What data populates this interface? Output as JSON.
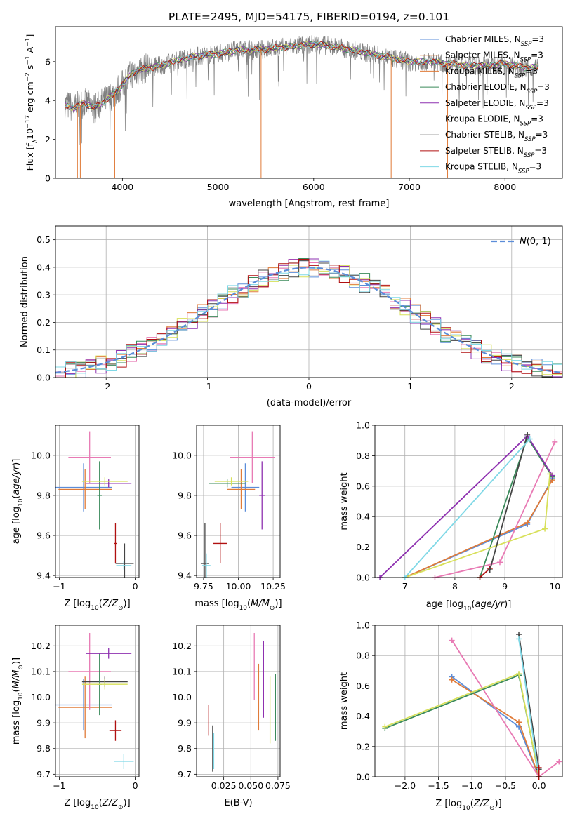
{
  "figure_title": "PLATE=2495, MJD=54175, FIBERID=0194, z=0.101",
  "colors": {
    "Chabrier MILES": "#5b8dd9",
    "Salpeter MILES": "#e07b39",
    "Kroupa MILES": "#e07b39",
    "Chabrier ELODIE": "#3a8a5a",
    "Salpeter ELODIE": "#8e30b0",
    "Kroupa ELODIE": "#d8e05a",
    "Chabrier STELIB": "#444444",
    "Salpeter STELIB": "#b01010",
    "Kroupa STELIB": "#7fd8e6",
    "pink": "#e87ab4",
    "data": "#808080",
    "normal": "#5b8dd9",
    "grid": "#b0b0b0"
  },
  "chart_data": [
    {
      "id": "spectrum",
      "type": "line",
      "title": "PLATE=2495, MJD=54175, FIBERID=0194, z=0.101",
      "xlabel": "wavelength [Angstrom, rest frame]",
      "ylabel": "Flux [f_λ 10^-17 erg cm^-2 s^-1 A^-1]",
      "xlim": [
        3300,
        8600
      ],
      "ylim": [
        0,
        7.8
      ],
      "xticks": [
        4000,
        5000,
        6000,
        7000,
        8000
      ],
      "yticks": [
        0,
        2,
        4,
        6
      ],
      "grid": false,
      "legend_position": "right",
      "legend": [
        {
          "name": "Chabrier MILES",
          "sub": "SSP",
          "n": "=3",
          "color": "#5b8dd9"
        },
        {
          "name": "Salpeter MILES",
          "sub": "SSP",
          "n": "=3",
          "color": "#e07b39"
        },
        {
          "name": "Kroupa MILES",
          "sub": "SSP",
          "n": "=3",
          "color": "#e07b39"
        },
        {
          "name": "Chabrier ELODIE",
          "sub": "SSP",
          "n": "=3",
          "color": "#3a8a5a"
        },
        {
          "name": "Salpeter ELODIE",
          "sub": "SSP",
          "n": "=3",
          "color": "#8e30b0"
        },
        {
          "name": "Kroupa ELODIE",
          "sub": "SSP",
          "n": "=3",
          "color": "#d8e05a"
        },
        {
          "name": "Chabrier STELIB",
          "sub": "SSP",
          "n": "=3",
          "color": "#444444"
        },
        {
          "name": "Salpeter STELIB",
          "sub": "SSP",
          "n": "=3",
          "color": "#b01010"
        },
        {
          "name": "Kroupa STELIB",
          "sub": "SSP",
          "n": "=3",
          "color": "#7fd8e6"
        }
      ],
      "continuum_x": [
        3400,
        3500,
        3600,
        3700,
        3800,
        3900,
        4000,
        4100,
        4200,
        4400,
        4600,
        4800,
        5000,
        5200,
        5400,
        5600,
        5800,
        6000,
        6200,
        6400,
        6600,
        6800,
        7000,
        7200,
        7400,
        7600,
        7800,
        8000,
        8200,
        8300
      ],
      "continuum_y": [
        3.8,
        3.6,
        3.9,
        3.6,
        3.9,
        4.3,
        4.8,
        5.4,
        5.6,
        5.8,
        6.1,
        6.3,
        6.4,
        6.6,
        6.6,
        6.7,
        6.8,
        6.9,
        6.8,
        6.6,
        6.4,
        6.2,
        6.0,
        6.0,
        5.9,
        5.8,
        5.8,
        5.9,
        5.7,
        5.7
      ],
      "spikes": [
        {
          "x": 3530,
          "y": 0
        },
        {
          "x": 3560,
          "y": 0
        },
        {
          "x": 3920,
          "y": 0
        },
        {
          "x": 5450,
          "y": 0
        },
        {
          "x": 6810,
          "y": 0
        },
        {
          "x": 7400,
          "y": 0
        }
      ]
    },
    {
      "id": "residuals",
      "type": "line",
      "xlabel": "(data-model)/error",
      "ylabel": "Normed distribution",
      "xlim": [
        -2.5,
        2.5
      ],
      "ylim": [
        0,
        0.55
      ],
      "xticks": [
        -2,
        -1,
        0,
        1,
        2
      ],
      "yticks": [
        0.0,
        0.1,
        0.2,
        0.3,
        0.4,
        0.5
      ],
      "grid": true,
      "legend_position": "top-right",
      "legend": [
        {
          "name": "N(0,1)",
          "color": "#5b8dd9",
          "style": "dashed"
        }
      ],
      "bin_width": 0.1,
      "histogram_approx_x": [
        -2.45,
        -2.05,
        -1.65,
        -1.25,
        -0.85,
        -0.45,
        -0.05,
        0.05,
        0.45,
        0.85,
        1.25,
        1.65,
        2.05,
        2.45
      ],
      "histogram_approx_y": [
        0.02,
        0.05,
        0.11,
        0.18,
        0.27,
        0.36,
        0.45,
        0.48,
        0.4,
        0.26,
        0.17,
        0.1,
        0.05,
        0.03
      ]
    },
    {
      "id": "age_vs_Z",
      "type": "scatter",
      "xlabel": "Z [log10(Z/Z_sun)]",
      "ylabel": "age  [log10(age/yr)]",
      "xlim": [
        -1.05,
        0.05
      ],
      "ylim": [
        9.39,
        10.15
      ],
      "xticks": [
        -1,
        0
      ],
      "xtick_labels": [
        "−1",
        "0"
      ],
      "yticks": [
        9.4,
        9.6,
        9.8,
        10.0
      ],
      "ytick_labels": [
        "9.4",
        "9.6",
        "9.8",
        "10.0"
      ],
      "grid": true,
      "points": [
        {
          "x": -0.68,
          "y": 9.84,
          "xerr": 0.37,
          "yerr": 0.12,
          "color": "#5b8dd9"
        },
        {
          "x": -0.66,
          "y": 9.83,
          "xerr": 0.35,
          "yerr": 0.1,
          "color": "#e07b39"
        },
        {
          "x": -0.6,
          "y": 9.99,
          "xerr": 0.28,
          "yerr": 0.13,
          "color": "#e87ab4"
        },
        {
          "x": -0.47,
          "y": 9.8,
          "xerr": 0.03,
          "yerr": 0.17,
          "color": "#3a8a5a"
        },
        {
          "x": -0.35,
          "y": 9.86,
          "xerr": 0.3,
          "yerr": 0.02,
          "color": "#8e30b0"
        },
        {
          "x": -0.4,
          "y": 9.87,
          "xerr": 0.3,
          "yerr": 0.02,
          "color": "#d8e05a"
        },
        {
          "x": -0.26,
          "y": 9.56,
          "xerr": 0.02,
          "yerr": 0.1,
          "color": "#b01010"
        },
        {
          "x": -0.14,
          "y": 9.46,
          "xerr": 0.12,
          "yerr": 0.1,
          "color": "#444444"
        },
        {
          "x": -0.15,
          "y": 9.45,
          "xerr": 0.1,
          "yerr": 0.02,
          "color": "#7fd8e6"
        }
      ]
    },
    {
      "id": "age_vs_mass",
      "type": "scatter",
      "xlabel": "mass [log10(M/M_sun)]",
      "ylabel": "",
      "xlim": [
        9.7,
        10.3
      ],
      "ylim": [
        9.39,
        10.15
      ],
      "xticks": [
        9.75,
        10.0,
        10.25
      ],
      "xtick_labels": [
        "9.75",
        "10.00",
        "10.25"
      ],
      "yticks": [
        9.4,
        9.6,
        9.8,
        10.0
      ],
      "ytick_labels": [
        "9.4",
        "9.6",
        "9.8",
        "10.0"
      ],
      "grid": true,
      "points": [
        {
          "x": 10.05,
          "y": 9.84,
          "xerr": 0.1,
          "yerr": 0.12,
          "color": "#5b8dd9"
        },
        {
          "x": 10.02,
          "y": 9.83,
          "xerr": 0.1,
          "yerr": 0.1,
          "color": "#e07b39"
        },
        {
          "x": 10.1,
          "y": 9.99,
          "xerr": 0.16,
          "yerr": 0.13,
          "color": "#e87ab4"
        },
        {
          "x": 9.92,
          "y": 9.86,
          "xerr": 0.13,
          "yerr": 0.02,
          "color": "#3a8a5a"
        },
        {
          "x": 10.17,
          "y": 9.8,
          "xerr": 0.02,
          "yerr": 0.17,
          "color": "#8e30b0"
        },
        {
          "x": 9.95,
          "y": 9.87,
          "xerr": 0.12,
          "yerr": 0.02,
          "color": "#d8e05a"
        },
        {
          "x": 9.87,
          "y": 9.56,
          "xerr": 0.05,
          "yerr": 0.1,
          "color": "#b01010"
        },
        {
          "x": 9.76,
          "y": 9.46,
          "xerr": 0.03,
          "yerr": 0.2,
          "color": "#444444"
        },
        {
          "x": 9.77,
          "y": 9.45,
          "xerr": 0.03,
          "yerr": 0.06,
          "color": "#7fd8e6"
        }
      ]
    },
    {
      "id": "weight_vs_age",
      "type": "line",
      "xlabel": "age  [log10(age/yr)]",
      "ylabel": "mass weight",
      "xlim": [
        6.4,
        10.15
      ],
      "ylim": [
        0,
        1.0
      ],
      "xticks": [
        7,
        8,
        9,
        10
      ],
      "yticks": [
        0.0,
        0.2,
        0.4,
        0.6,
        0.8,
        1.0
      ],
      "grid": true,
      "series": [
        {
          "color": "#5b8dd9",
          "x": [
            7.0,
            9.45,
            9.95
          ],
          "y": [
            0.0,
            0.35,
            0.65
          ]
        },
        {
          "color": "#e07b39",
          "x": [
            7.0,
            9.45,
            9.95
          ],
          "y": [
            0.0,
            0.36,
            0.64
          ]
        },
        {
          "color": "#e87ab4",
          "x": [
            7.6,
            8.9,
            10.0
          ],
          "y": [
            0.0,
            0.1,
            0.89
          ]
        },
        {
          "color": "#3a8a5a",
          "x": [
            8.5,
            9.45,
            9.95
          ],
          "y": [
            0.0,
            0.92,
            0.66
          ]
        },
        {
          "color": "#8e30b0",
          "x": [
            6.5,
            9.45,
            9.95
          ],
          "y": [
            0.0,
            0.93,
            0.67
          ]
        },
        {
          "color": "#d8e05a",
          "x": [
            7.0,
            9.8,
            9.9
          ],
          "y": [
            0.0,
            0.32,
            0.68
          ]
        },
        {
          "color": "#b01010",
          "x": [
            8.5,
            8.7
          ],
          "y": [
            0.0,
            0.06
          ]
        },
        {
          "color": "#444444",
          "x": [
            8.7,
            9.45
          ],
          "y": [
            0.05,
            0.94
          ]
        },
        {
          "color": "#7fd8e6",
          "x": [
            7.0,
            9.5
          ],
          "y": [
            0.0,
            0.91
          ]
        }
      ]
    },
    {
      "id": "mass_vs_Z",
      "type": "scatter",
      "xlabel": "Z [log10(Z/Z_sun)]",
      "ylabel": "mass [log10(M/M_sun)]",
      "xlim": [
        -1.05,
        0.05
      ],
      "ylim": [
        9.69,
        10.28
      ],
      "xticks": [
        -1,
        0
      ],
      "xtick_labels": [
        "−1",
        "0"
      ],
      "yticks": [
        9.7,
        9.8,
        9.9,
        10.0,
        10.1,
        10.2
      ],
      "ytick_labels": [
        "9.7",
        "9.8",
        "9.9",
        "10.0",
        "10.1",
        "10.2"
      ],
      "grid": true,
      "points": [
        {
          "x": -0.68,
          "y": 9.97,
          "xerr": 0.37,
          "yerr": 0.1,
          "color": "#5b8dd9"
        },
        {
          "x": -0.66,
          "y": 9.96,
          "xerr": 0.35,
          "yerr": 0.12,
          "color": "#e07b39"
        },
        {
          "x": -0.6,
          "y": 10.1,
          "xerr": 0.28,
          "yerr": 0.15,
          "color": "#e87ab4"
        },
        {
          "x": -0.4,
          "y": 10.06,
          "xerr": 0.3,
          "yerr": 0.02,
          "color": "#444444"
        },
        {
          "x": -0.47,
          "y": 10.05,
          "xerr": 0.03,
          "yerr": 0.12,
          "color": "#3a8a5a"
        },
        {
          "x": -0.35,
          "y": 10.17,
          "xerr": 0.3,
          "yerr": 0.02,
          "color": "#8e30b0"
        },
        {
          "x": -0.4,
          "y": 10.05,
          "xerr": 0.3,
          "yerr": 0.02,
          "color": "#d8e05a"
        },
        {
          "x": -0.26,
          "y": 9.87,
          "xerr": 0.08,
          "yerr": 0.04,
          "color": "#b01010"
        },
        {
          "x": -0.15,
          "y": 9.75,
          "xerr": 0.13,
          "yerr": 0.03,
          "color": "#7fd8e6"
        }
      ]
    },
    {
      "id": "mass_vs_ebv",
      "type": "scatter",
      "xlabel": "E(B-V)",
      "ylabel": "",
      "xlim": [
        0.0,
        0.077
      ],
      "ylim": [
        9.69,
        10.28
      ],
      "xticks": [
        0.025,
        0.05,
        0.075
      ],
      "xtick_labels": [
        "0.025",
        "0.050",
        "0.075"
      ],
      "yticks": [
        9.7,
        9.8,
        9.9,
        10.0,
        10.1,
        10.2
      ],
      "ytick_labels": [
        "9.7",
        "9.8",
        "9.9",
        "10.0",
        "10.1",
        "10.2"
      ],
      "grid": true,
      "points": [
        {
          "x": 0.0148,
          "y": 9.8,
          "xerr": 0,
          "yerr": 0.09,
          "color": "#444444"
        },
        {
          "x": 0.0158,
          "y": 9.79,
          "xerr": 0,
          "yerr": 0.07,
          "color": "#7fd8e6"
        },
        {
          "x": 0.0112,
          "y": 9.91,
          "xerr": 0,
          "yerr": 0.06,
          "color": "#b01010"
        },
        {
          "x": 0.0532,
          "y": 10.12,
          "xerr": 0,
          "yerr": 0.13,
          "color": "#e87ab4"
        },
        {
          "x": 0.0572,
          "y": 10.0,
          "xerr": 0,
          "yerr": 0.13,
          "color": "#e07b39"
        },
        {
          "x": 0.0617,
          "y": 10.07,
          "xerr": 0,
          "yerr": 0.15,
          "color": "#8e30b0"
        },
        {
          "x": 0.0677,
          "y": 9.95,
          "xerr": 0,
          "yerr": 0.13,
          "color": "#d8e05a"
        },
        {
          "x": 0.0727,
          "y": 9.96,
          "xerr": 0,
          "yerr": 0.13,
          "color": "#3a8a5a"
        }
      ]
    },
    {
      "id": "weight_vs_Z",
      "type": "line",
      "xlabel": "Z [log10(Z/Z_sun)]",
      "ylabel": "mass weight",
      "xlim": [
        -2.45,
        0.35
      ],
      "ylim": [
        0,
        1.0
      ],
      "xticks": [
        -2.0,
        -1.5,
        -1.0,
        -0.5,
        0.0
      ],
      "xtick_labels": [
        "−2.0",
        "−1.5",
        "−1.0",
        "−0.5",
        "0.0"
      ],
      "yticks": [
        0.0,
        0.2,
        0.4,
        0.6,
        0.8,
        1.0
      ],
      "grid": true,
      "series": [
        {
          "color": "#5b8dd9",
          "x": [
            -1.3,
            -0.3,
            0.0
          ],
          "y": [
            0.66,
            0.33,
            0.0
          ]
        },
        {
          "color": "#e07b39",
          "x": [
            -1.3,
            -0.3,
            0.0
          ],
          "y": [
            0.64,
            0.36,
            0.0
          ]
        },
        {
          "color": "#e87ab4",
          "x": [
            -1.3,
            0.0,
            0.3
          ],
          "y": [
            0.9,
            0.0,
            0.1
          ]
        },
        {
          "color": "#3a8a5a",
          "x": [
            -2.3,
            -0.3,
            0.0
          ],
          "y": [
            0.32,
            0.67,
            0.0
          ]
        },
        {
          "color": "#d8e05a",
          "x": [
            -2.3,
            -0.3,
            0.0
          ],
          "y": [
            0.33,
            0.68,
            0.0
          ]
        },
        {
          "color": "#444444",
          "x": [
            -0.3,
            0.0
          ],
          "y": [
            0.94,
            0.05
          ]
        },
        {
          "color": "#7fd8e6",
          "x": [
            -0.3,
            0.0
          ],
          "y": [
            0.91,
            0.0
          ]
        },
        {
          "color": "#b01010",
          "x": [
            0.0,
            0.0
          ],
          "y": [
            0.0,
            0.06
          ]
        }
      ]
    }
  ]
}
